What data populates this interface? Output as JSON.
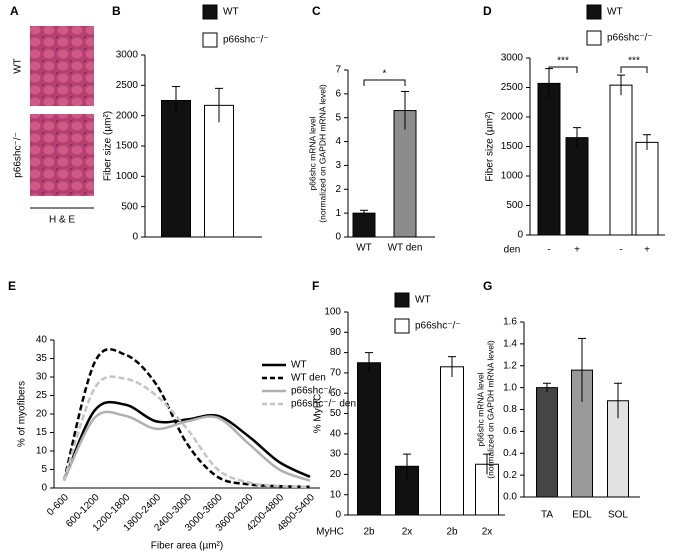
{
  "panel_a": {
    "label": "A",
    "rows": [
      "WT",
      "p66shc⁻/⁻"
    ],
    "stain": "H & E"
  },
  "chart_data": [
    {
      "type": "bar",
      "label": "B",
      "ylabel": [
        "Fiber size (µm²)"
      ],
      "categories": [
        null,
        null
      ],
      "series": [
        {
          "name": "WT",
          "color": "#111111",
          "values": [
            2250,
            null
          ],
          "errors": [
            230,
            null
          ]
        },
        {
          "name": "p66shc⁻/⁻",
          "color": "#ffffff",
          "values": [
            null,
            2170
          ],
          "errors": [
            null,
            280
          ]
        }
      ],
      "ylim": [
        0,
        3000
      ],
      "yticks": [
        0,
        500,
        1000,
        1500,
        2000,
        2500,
        3000
      ],
      "legend": "top"
    },
    {
      "type": "bar",
      "label": "C",
      "ylabel": [
        "p66shc mRNA level",
        "(normalized on GAPDH mRNA level)"
      ],
      "categories": [
        "WT",
        "WT den"
      ],
      "values": [
        1.0,
        5.3
      ],
      "errors": [
        0.12,
        0.8
      ],
      "colors": [
        "#111111",
        "#8c8c8c"
      ],
      "ylim": [
        0,
        7
      ],
      "yticks": [
        0,
        1,
        2,
        3,
        4,
        5,
        6,
        7
      ],
      "annotations": [
        "*"
      ]
    },
    {
      "type": "bar",
      "label": "D",
      "ylabel": [
        "Fiber size (µm²)"
      ],
      "xlabel": "den",
      "categories": [
        "-",
        "+",
        "-",
        "+"
      ],
      "series": [
        {
          "name": "WT",
          "color": "#111111",
          "values": [
            2570,
            1650,
            null,
            null
          ],
          "errors": [
            250,
            170,
            null,
            null
          ]
        },
        {
          "name": "p66shc⁻/⁻",
          "color": "#ffffff",
          "values": [
            null,
            null,
            2540,
            1570
          ],
          "errors": [
            null,
            null,
            170,
            130
          ]
        }
      ],
      "ylim": [
        0,
        3000
      ],
      "yticks": [
        0,
        500,
        1000,
        1500,
        2000,
        2500,
        3000
      ],
      "annotations": [
        "***",
        "***"
      ],
      "legend": "top"
    },
    {
      "type": "line",
      "label": "E",
      "ylabel": [
        "% of myofibers"
      ],
      "xlabel": "Fiber area (µm²)",
      "categories": [
        "0-600",
        "600-1200",
        "1200-1800",
        "1800-2400",
        "2400-3000",
        "3000-3600",
        "3600-4200",
        "4200-4800",
        "4800-5400"
      ],
      "series": [
        {
          "name": "WT",
          "color": "#000000",
          "dash": "solid",
          "values": [
            2,
            21,
            22.5,
            18,
            18.5,
            19.5,
            14,
            7,
            3
          ]
        },
        {
          "name": "WT den",
          "color": "#000000",
          "dash": "dashed",
          "values": [
            2,
            34,
            36,
            28,
            12,
            3,
            1,
            0.5,
            0.3
          ]
        },
        {
          "name": "p66shc⁻/⁻",
          "color": "#b0b0b0",
          "dash": "solid",
          "values": [
            2,
            19,
            19.5,
            16,
            18,
            19,
            12,
            5,
            2
          ]
        },
        {
          "name": "p66shc⁻/⁻ den",
          "color": "#c4c4c4",
          "dash": "dashed",
          "values": [
            2,
            27,
            29.5,
            25,
            16,
            5,
            1.5,
            0.5,
            0.3
          ]
        }
      ],
      "ylim": [
        0,
        40
      ],
      "yticks": [
        0,
        5,
        10,
        15,
        20,
        25,
        30,
        35,
        40
      ],
      "legend": "upper right"
    },
    {
      "type": "bar",
      "label": "F",
      "ylabel": [
        "% MyHC"
      ],
      "xlabel": "MyHC",
      "categories": [
        "2b",
        "2x",
        "2b",
        "2x"
      ],
      "series": [
        {
          "name": "WT",
          "color": "#111111",
          "values": [
            75,
            24,
            null,
            null
          ],
          "errors": [
            5,
            6,
            null,
            null
          ]
        },
        {
          "name": "p66shc⁻/⁻",
          "color": "#ffffff",
          "values": [
            null,
            null,
            73,
            25
          ],
          "errors": [
            null,
            null,
            5,
            5
          ]
        }
      ],
      "ylim": [
        0,
        100
      ],
      "yticks": [
        0,
        10,
        20,
        30,
        40,
        50,
        60,
        70,
        80,
        90,
        100
      ],
      "legend": "top"
    },
    {
      "type": "bar",
      "label": "G",
      "ylabel": [
        "p66shc mRNA level",
        "(normalized on GAPDH mRNA level)"
      ],
      "categories": [
        "TA",
        "EDL",
        "SOL"
      ],
      "values": [
        1.0,
        1.16,
        0.88
      ],
      "errors": [
        0.04,
        0.29,
        0.16
      ],
      "colors": [
        "#454545",
        "#9a9a9a",
        "#e2e2e2"
      ],
      "ylim": [
        0,
        1.6
      ],
      "yticks": [
        {
          "value": 0,
          "label": "0.0"
        },
        0.2,
        0.4,
        0.6,
        0.8,
        {
          "value": 1,
          "label": "1.0"
        },
        1.2,
        1.4,
        1.6
      ]
    }
  ]
}
